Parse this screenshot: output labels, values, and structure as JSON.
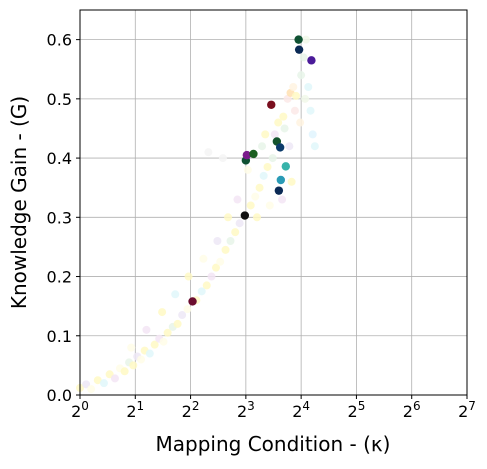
{
  "chart_data": {
    "type": "scatter",
    "xlabel": "Mapping Condition - (κ)",
    "ylabel": "Knowledge Gain - (G)",
    "xscale": "log2",
    "xlim": [
      1,
      128
    ],
    "ylim": [
      0,
      0.65
    ],
    "grid": true,
    "x_ticks": [
      {
        "value": 1,
        "base": "2",
        "exp": "0"
      },
      {
        "value": 2,
        "base": "2",
        "exp": "1"
      },
      {
        "value": 4,
        "base": "2",
        "exp": "2"
      },
      {
        "value": 8,
        "base": "2",
        "exp": "3"
      },
      {
        "value": 16,
        "base": "2",
        "exp": "4"
      },
      {
        "value": 32,
        "base": "2",
        "exp": "5"
      },
      {
        "value": 64,
        "base": "2",
        "exp": "6"
      },
      {
        "value": 128,
        "base": "2",
        "exp": "7"
      }
    ],
    "y_ticks": [
      {
        "value": 0,
        "label": "0.0"
      },
      {
        "value": 0.1,
        "label": "0.1"
      },
      {
        "value": 0.2,
        "label": "0.2"
      },
      {
        "value": 0.3,
        "label": "0.3"
      },
      {
        "value": 0.4,
        "label": "0.4"
      },
      {
        "value": 0.5,
        "label": "0.5"
      },
      {
        "value": 0.6,
        "label": "0.6"
      }
    ],
    "highlighted_points": [
      {
        "x": 4.1,
        "y": 0.158,
        "color": "#6b0d2e"
      },
      {
        "x": 7.9,
        "y": 0.303,
        "color": "#111111"
      },
      {
        "x": 8.0,
        "y": 0.396,
        "color": "#0f5132"
      },
      {
        "x": 8.1,
        "y": 0.405,
        "color": "#7b1c8c"
      },
      {
        "x": 8.8,
        "y": 0.407,
        "color": "#1b5e20"
      },
      {
        "x": 11.0,
        "y": 0.49,
        "color": "#7a0f1f"
      },
      {
        "x": 11.8,
        "y": 0.428,
        "color": "#14532d"
      },
      {
        "x": 12.1,
        "y": 0.345,
        "color": "#0b2a55"
      },
      {
        "x": 12.3,
        "y": 0.418,
        "color": "#0b3a6b"
      },
      {
        "x": 12.4,
        "y": 0.363,
        "color": "#2a9bb6"
      },
      {
        "x": 13.2,
        "y": 0.386,
        "color": "#37b3aa"
      },
      {
        "x": 15.5,
        "y": 0.6,
        "color": "#0f5132"
      },
      {
        "x": 15.6,
        "y": 0.583,
        "color": "#0b2a55"
      },
      {
        "x": 18.2,
        "y": 0.565,
        "color": "#4b1b99"
      }
    ],
    "faded_points": [
      {
        "x": 1.0,
        "y": 0.012,
        "color": "#fff9c4"
      },
      {
        "x": 1.08,
        "y": 0.018,
        "color": "#ede7f6"
      },
      {
        "x": 1.15,
        "y": 0.01,
        "color": "#fffde7"
      },
      {
        "x": 1.25,
        "y": 0.025,
        "color": "#fff9c4"
      },
      {
        "x": 1.35,
        "y": 0.02,
        "color": "#e0f7fa"
      },
      {
        "x": 1.45,
        "y": 0.035,
        "color": "#fff9c4"
      },
      {
        "x": 1.55,
        "y": 0.028,
        "color": "#f3e5f5"
      },
      {
        "x": 1.65,
        "y": 0.045,
        "color": "#fffde7"
      },
      {
        "x": 1.75,
        "y": 0.04,
        "color": "#fff9c4"
      },
      {
        "x": 1.85,
        "y": 0.055,
        "color": "#e8f5e9"
      },
      {
        "x": 1.95,
        "y": 0.05,
        "color": "#fff9c4"
      },
      {
        "x": 2.05,
        "y": 0.065,
        "color": "#ede7f6"
      },
      {
        "x": 2.15,
        "y": 0.06,
        "color": "#fffde7"
      },
      {
        "x": 2.25,
        "y": 0.075,
        "color": "#fff9c4"
      },
      {
        "x": 2.4,
        "y": 0.07,
        "color": "#e0f7fa"
      },
      {
        "x": 2.55,
        "y": 0.085,
        "color": "#fff9c4"
      },
      {
        "x": 2.7,
        "y": 0.095,
        "color": "#f3e5f5"
      },
      {
        "x": 2.85,
        "y": 0.09,
        "color": "#fffde7"
      },
      {
        "x": 3.0,
        "y": 0.105,
        "color": "#fff9c4"
      },
      {
        "x": 3.2,
        "y": 0.115,
        "color": "#e8f5e9"
      },
      {
        "x": 3.4,
        "y": 0.12,
        "color": "#fff9c4"
      },
      {
        "x": 3.6,
        "y": 0.135,
        "color": "#ede7f6"
      },
      {
        "x": 3.85,
        "y": 0.145,
        "color": "#fffde7"
      },
      {
        "x": 4.3,
        "y": 0.16,
        "color": "#fff9c4"
      },
      {
        "x": 4.6,
        "y": 0.175,
        "color": "#e0f7fa"
      },
      {
        "x": 4.9,
        "y": 0.185,
        "color": "#fff9c4"
      },
      {
        "x": 5.2,
        "y": 0.2,
        "color": "#f3e5f5"
      },
      {
        "x": 5.5,
        "y": 0.215,
        "color": "#fff9c4"
      },
      {
        "x": 5.8,
        "y": 0.225,
        "color": "#fffde7"
      },
      {
        "x": 6.2,
        "y": 0.245,
        "color": "#fff9c4"
      },
      {
        "x": 6.6,
        "y": 0.26,
        "color": "#e8f5e9"
      },
      {
        "x": 7.0,
        "y": 0.275,
        "color": "#fff9c4"
      },
      {
        "x": 7.4,
        "y": 0.29,
        "color": "#ede7f6"
      },
      {
        "x": 8.5,
        "y": 0.32,
        "color": "#fff9c4"
      },
      {
        "x": 9.0,
        "y": 0.335,
        "color": "#fffde7"
      },
      {
        "x": 9.5,
        "y": 0.35,
        "color": "#fff9c4"
      },
      {
        "x": 10.0,
        "y": 0.37,
        "color": "#e0f7fa"
      },
      {
        "x": 10.5,
        "y": 0.385,
        "color": "#fff9c4"
      },
      {
        "x": 11.5,
        "y": 0.44,
        "color": "#f3e5f5"
      },
      {
        "x": 12.8,
        "y": 0.47,
        "color": "#fff9c4"
      },
      {
        "x": 13.5,
        "y": 0.5,
        "color": "#fbe9e7"
      },
      {
        "x": 14.0,
        "y": 0.51,
        "color": "#ffe0b2"
      },
      {
        "x": 14.5,
        "y": 0.52,
        "color": "#fff3e0"
      },
      {
        "x": 15.0,
        "y": 0.505,
        "color": "#fff9c4"
      },
      {
        "x": 16.0,
        "y": 0.54,
        "color": "#e8f5e9"
      },
      {
        "x": 16.5,
        "y": 0.57,
        "color": "#e8f5e9"
      },
      {
        "x": 17.0,
        "y": 0.6,
        "color": "#f1f8e9"
      },
      {
        "x": 17.5,
        "y": 0.52,
        "color": "#e0f7fa"
      },
      {
        "x": 18.0,
        "y": 0.48,
        "color": "#e0f7fa"
      },
      {
        "x": 18.5,
        "y": 0.44,
        "color": "#e1f5fe"
      },
      {
        "x": 19.0,
        "y": 0.42,
        "color": "#e0f7fa"
      },
      {
        "x": 13.0,
        "y": 0.45,
        "color": "#e8f5e9"
      },
      {
        "x": 12.0,
        "y": 0.46,
        "color": "#fff9c4"
      },
      {
        "x": 9.8,
        "y": 0.42,
        "color": "#e8f5e9"
      },
      {
        "x": 8.2,
        "y": 0.38,
        "color": "#fffde7"
      },
      {
        "x": 7.2,
        "y": 0.33,
        "color": "#f3e5f5"
      },
      {
        "x": 6.4,
        "y": 0.3,
        "color": "#fff9c4"
      },
      {
        "x": 5.6,
        "y": 0.26,
        "color": "#ede7f6"
      },
      {
        "x": 4.7,
        "y": 0.23,
        "color": "#fffde7"
      },
      {
        "x": 3.9,
        "y": 0.2,
        "color": "#fff9c4"
      },
      {
        "x": 3.3,
        "y": 0.17,
        "color": "#e0f7fa"
      },
      {
        "x": 2.8,
        "y": 0.14,
        "color": "#fff9c4"
      },
      {
        "x": 2.3,
        "y": 0.11,
        "color": "#f3e5f5"
      },
      {
        "x": 1.9,
        "y": 0.08,
        "color": "#fffde7"
      },
      {
        "x": 14.8,
        "y": 0.48,
        "color": "#fbe9e7"
      },
      {
        "x": 15.8,
        "y": 0.46,
        "color": "#fff3e0"
      },
      {
        "x": 13.8,
        "y": 0.42,
        "color": "#ede7f6"
      },
      {
        "x": 11.2,
        "y": 0.4,
        "color": "#e8f5e9"
      },
      {
        "x": 10.2,
        "y": 0.44,
        "color": "#fff9c4"
      },
      {
        "x": 9.2,
        "y": 0.3,
        "color": "#fff9c4"
      },
      {
        "x": 10.8,
        "y": 0.32,
        "color": "#fffde7"
      },
      {
        "x": 12.6,
        "y": 0.33,
        "color": "#f3e5f5"
      },
      {
        "x": 14.2,
        "y": 0.36,
        "color": "#fff9c4"
      },
      {
        "x": 6.0,
        "y": 0.4,
        "color": "#f5f5f5"
      },
      {
        "x": 5.0,
        "y": 0.41,
        "color": "#f5f5f5"
      },
      {
        "x": 16.8,
        "y": 0.5,
        "color": "#f1f8e9"
      }
    ]
  }
}
